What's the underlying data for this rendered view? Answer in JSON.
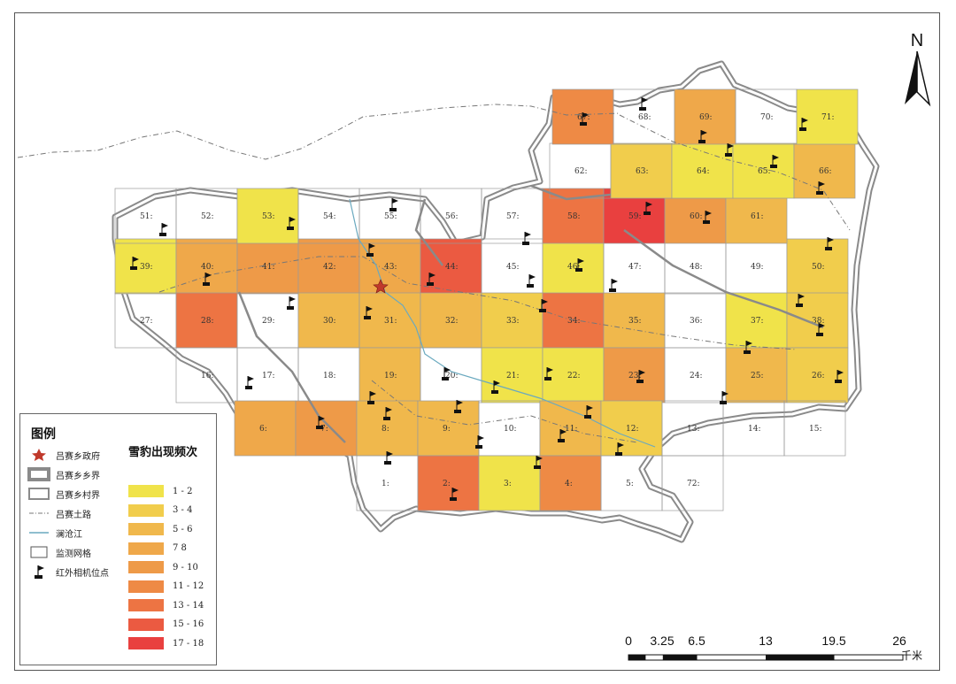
{
  "north_label": "N",
  "legend": {
    "title": "图例",
    "items": [
      {
        "label": "吕赛乡政府",
        "symbol": "star-icon"
      },
      {
        "label": "吕赛乡乡界",
        "symbol": "township-boundary-icon"
      },
      {
        "label": "吕赛乡村界",
        "symbol": "village-boundary-icon"
      },
      {
        "label": "吕赛土路",
        "symbol": "dirt-road-icon"
      },
      {
        "label": "澜沧江",
        "symbol": "river-icon"
      },
      {
        "label": "监测网格",
        "symbol": "grid-cell-icon"
      },
      {
        "label": "红外相机位点",
        "symbol": "camera-flag-icon"
      }
    ],
    "frequency_title": "雪豹出现频次",
    "classes": [
      {
        "label": "1 - 2",
        "color": "#f0e34a"
      },
      {
        "label": "3 - 4",
        "color": "#f1cd4c"
      },
      {
        "label": "5 - 6",
        "color": "#f0b84c"
      },
      {
        "label": "7   8",
        "color": "#efa84a"
      },
      {
        "label": "9 - 10",
        "color": "#ee9a48"
      },
      {
        "label": "11 - 12",
        "color": "#ee8a45"
      },
      {
        "label": "13 - 14",
        "color": "#ed7443"
      },
      {
        "label": "15 - 16",
        "color": "#eb5a41"
      },
      {
        "label": "17 - 18",
        "color": "#e9403f"
      }
    ]
  },
  "scale_bar": {
    "ticks": [
      "0",
      "3.25",
      "6.5",
      "13",
      "19.5",
      "26"
    ],
    "unit": "千米"
  },
  "grid_cells": [
    {
      "label": "39:",
      "cls": 0
    },
    {
      "label": "40:",
      "cls": 3
    },
    {
      "label": "41:",
      "cls": 4
    },
    {
      "label": "42:",
      "cls": 4
    },
    {
      "label": "43:",
      "cls": 3
    },
    {
      "label": "44:",
      "cls": 7
    },
    {
      "label": "45:",
      "cls": -1
    },
    {
      "label": "46:",
      "cls": 0
    },
    {
      "label": "47:",
      "cls": -1
    },
    {
      "label": "48:",
      "cls": -1
    },
    {
      "label": "49:",
      "cls": -1
    },
    {
      "label": "50:",
      "cls": 1
    },
    {
      "label": "27:",
      "cls": -1
    },
    {
      "label": "28:",
      "cls": 6
    },
    {
      "label": "29:",
      "cls": -1
    },
    {
      "label": "30:",
      "cls": 2
    },
    {
      "label": "31:",
      "cls": 2
    },
    {
      "label": "32:",
      "cls": 2
    },
    {
      "label": "33:",
      "cls": 1
    },
    {
      "label": "34:",
      "cls": 6
    },
    {
      "label": "35:",
      "cls": 2
    },
    {
      "label": "36:",
      "cls": -1
    },
    {
      "label": "37:",
      "cls": 0
    },
    {
      "label": "38:",
      "cls": 1
    },
    {
      "label": "16:",
      "cls": -1
    },
    {
      "label": "17:",
      "cls": -1
    },
    {
      "label": "18:",
      "cls": -1
    },
    {
      "label": "19:",
      "cls": 2
    },
    {
      "label": "20:",
      "cls": -1
    },
    {
      "label": "21:",
      "cls": 0
    },
    {
      "label": "22:",
      "cls": 0
    },
    {
      "label": "23:",
      "cls": 4
    },
    {
      "label": "24:",
      "cls": -1
    },
    {
      "label": "25:",
      "cls": 2
    },
    {
      "label": "26:",
      "cls": 1
    },
    {
      "label": "6:",
      "cls": 3
    },
    {
      "label": "7:",
      "cls": 4
    },
    {
      "label": "8:",
      "cls": 2
    },
    {
      "label": "9:",
      "cls": 2
    },
    {
      "label": "10:",
      "cls": -1
    },
    {
      "label": "11:",
      "cls": 2
    },
    {
      "label": "12:",
      "cls": 1
    },
    {
      "label": "13:",
      "cls": -1
    },
    {
      "label": "14:",
      "cls": -1
    },
    {
      "label": "15:",
      "cls": -1
    },
    {
      "label": "1:",
      "cls": -1
    },
    {
      "label": "2:",
      "cls": 6
    },
    {
      "label": "3:",
      "cls": 0
    },
    {
      "label": "4:",
      "cls": 5
    },
    {
      "label": "5:",
      "cls": -1
    },
    {
      "label": "72:",
      "cls": -1
    },
    {
      "label": "51:",
      "cls": -1
    },
    {
      "label": "52:",
      "cls": -1
    },
    {
      "label": "53:",
      "cls": 0
    },
    {
      "label": "54:",
      "cls": -1
    },
    {
      "label": "55:",
      "cls": -1
    },
    {
      "label": "56:",
      "cls": -1
    },
    {
      "label": "57:",
      "cls": -1
    },
    {
      "label": "58:",
      "cls": 6
    },
    {
      "label": "59:",
      "cls": 8
    },
    {
      "label": "60:",
      "cls": 4
    },
    {
      "label": "61:",
      "cls": 2
    },
    {
      "label": "62:",
      "cls": -1
    },
    {
      "label": "63:",
      "cls": 1
    },
    {
      "label": "64:",
      "cls": 0
    },
    {
      "label": "65:",
      "cls": 0
    },
    {
      "label": "66:",
      "cls": 2
    },
    {
      "label": "67:",
      "cls": 5
    },
    {
      "label": "68:",
      "cls": -1
    },
    {
      "label": "69:",
      "cls": 3
    },
    {
      "label": "70:",
      "cls": -1
    },
    {
      "label": "71:",
      "cls": 0
    }
  ]
}
